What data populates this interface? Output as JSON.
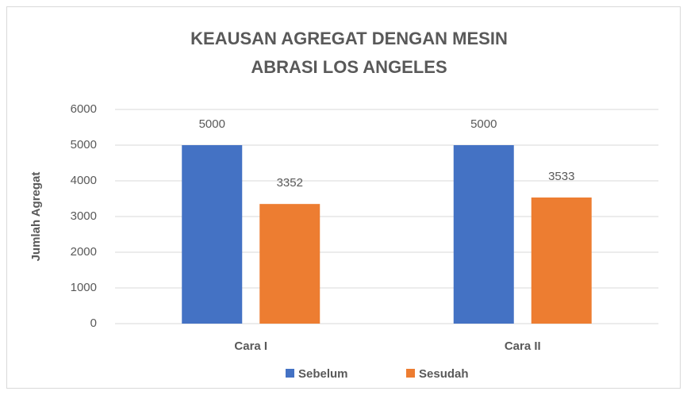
{
  "chart_data": {
    "type": "bar",
    "title": [
      "KEAUSAN AGREGAT DENGAN MESIN",
      "ABRASI LOS ANGELES"
    ],
    "ylabel": "Jumlah Agregat",
    "categories": [
      "Cara I",
      "Cara II"
    ],
    "series": [
      {
        "name": "Sebelum",
        "color": "#4472c4",
        "values": [
          5000,
          5000
        ]
      },
      {
        "name": "Sesudah",
        "color": "#ed7d31",
        "values": [
          3352,
          3533
        ]
      }
    ],
    "ylim": [
      0,
      6000
    ],
    "yticks": [
      0,
      1000,
      2000,
      3000,
      4000,
      5000,
      6000
    ],
    "grid": true,
    "legend": "bottom"
  }
}
